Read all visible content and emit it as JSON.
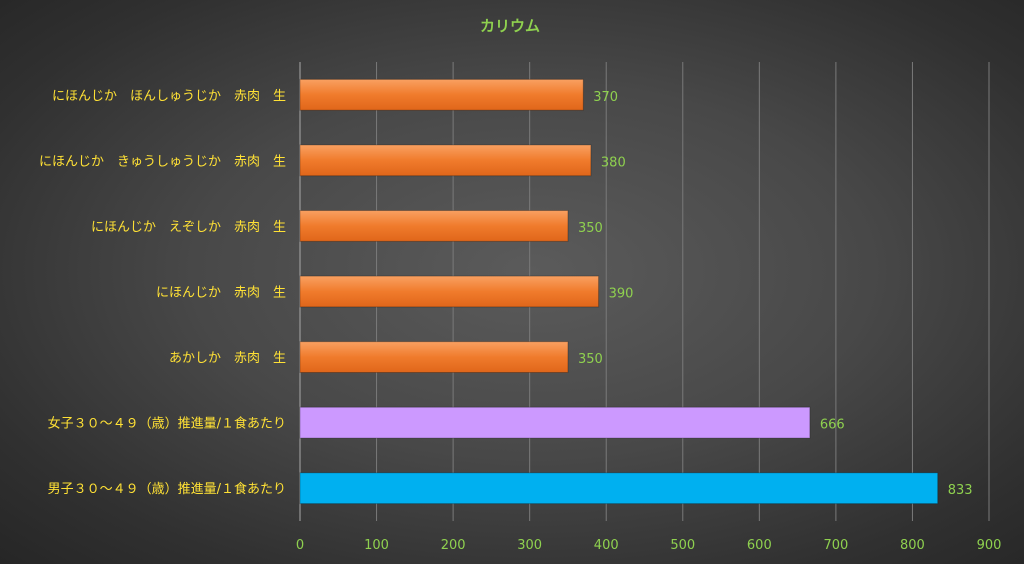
{
  "chart_data": {
    "type": "bar",
    "orientation": "horizontal",
    "title": "カリウム",
    "categories": [
      "にほんじか　ほんしゅうじか　赤肉　生",
      "にほんじか　きゅうしゅうじか　赤肉　生",
      "にほんじか　えぞしか　赤肉　生",
      "にほんじか　赤肉　生",
      "あかしか　赤肉　生",
      "女子３０～４９（歳）推進量/１食あたり",
      "男子３０～４９（歳）推進量/１食あたり"
    ],
    "values": [
      370,
      380,
      350,
      390,
      350,
      666,
      833
    ],
    "colors": [
      "#f07b2c",
      "#f07b2c",
      "#f07b2c",
      "#f07b2c",
      "#f07b2c",
      "#cc99ff",
      "#00b0f0"
    ],
    "xlim": [
      0,
      900
    ],
    "xticks": [
      0,
      100,
      200,
      300,
      400,
      500,
      600,
      700,
      800,
      900
    ],
    "grid": true,
    "xlabel": "",
    "ylabel": ""
  }
}
